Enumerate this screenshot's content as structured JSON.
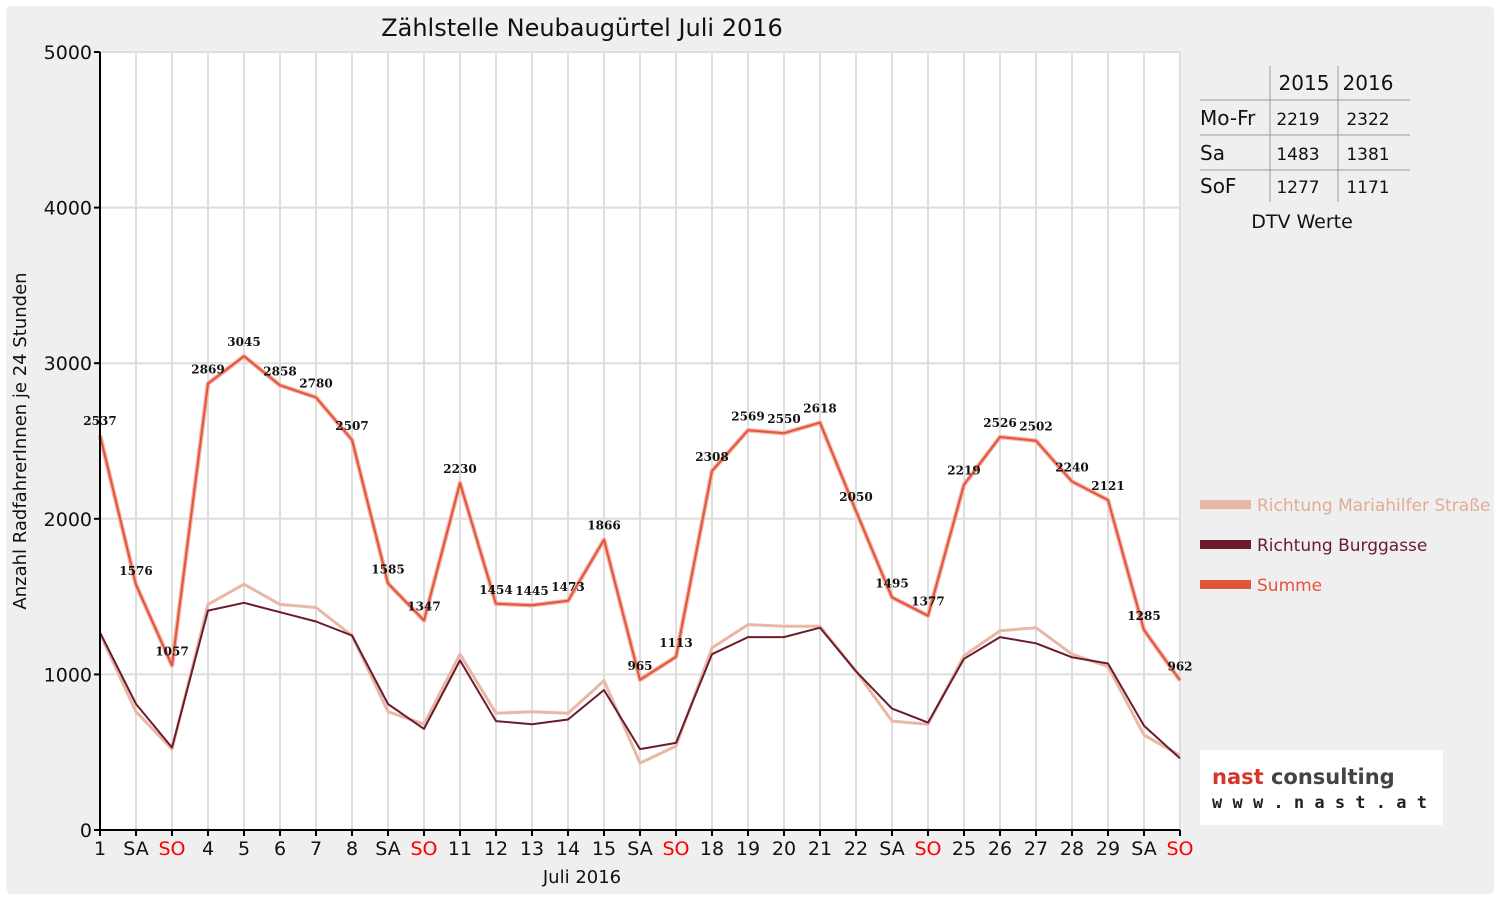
{
  "chart_data": {
    "type": "line",
    "title": "Zählstelle Neubaugürtel Juli 2016",
    "xlabel": "Juli 2016",
    "ylabel": "Anzahl RadfahrerInnen je 24 Stunden",
    "ylim": [
      0,
      5000
    ],
    "yticks": [
      0,
      1000,
      2000,
      3000,
      4000,
      5000
    ],
    "grid": true,
    "legend_position": "right",
    "categories": [
      "1",
      "SA",
      "SO",
      "4",
      "5",
      "6",
      "7",
      "8",
      "SA",
      "SO",
      "11",
      "12",
      "13",
      "14",
      "15",
      "SA",
      "SO",
      "18",
      "19",
      "20",
      "21",
      "22",
      "SA",
      "SO",
      "25",
      "26",
      "27",
      "28",
      "29",
      "SA",
      "SO"
    ],
    "weekend_color": "#ff0000",
    "series": [
      {
        "name": "Richtung Mariahilfer Straße",
        "color": "#e8b7a5",
        "values": [
          1260,
          760,
          520,
          1450,
          1580,
          1450,
          1430,
          1250,
          760,
          680,
          1130,
          750,
          760,
          750,
          960,
          430,
          540,
          1170,
          1320,
          1310,
          1310,
          1020,
          700,
          680,
          1120,
          1280,
          1300,
          1130,
          1050,
          610,
          480
        ]
      },
      {
        "name": "Richtung Burggasse",
        "color": "#6b1b2e",
        "values": [
          1270,
          810,
          530,
          1410,
          1460,
          1400,
          1340,
          1250,
          810,
          650,
          1090,
          700,
          680,
          710,
          900,
          520,
          560,
          1130,
          1240,
          1240,
          1300,
          1020,
          780,
          690,
          1100,
          1240,
          1200,
          1110,
          1070,
          670,
          460
        ]
      },
      {
        "name": "Summe",
        "color": "#e2543c",
        "values": [
          2537,
          1576,
          1057,
          2869,
          3045,
          2858,
          2780,
          2507,
          1585,
          1347,
          2230,
          1454,
          1445,
          1473,
          1866,
          965,
          1113,
          2308,
          2569,
          2550,
          2618,
          2050,
          1495,
          1377,
          2219,
          2526,
          2502,
          2240,
          2121,
          1285,
          962
        ],
        "labels": [
          "2537",
          "1576",
          "1057",
          "2869",
          "3045",
          "2858",
          "2780",
          "2507",
          "1585",
          "1347",
          "2230",
          "1454",
          "1445",
          "1473",
          "1866",
          "965",
          "1113",
          "2308",
          "2569",
          "2550",
          "2618",
          "2050",
          "1495",
          "1377",
          "2219",
          "2526",
          "2502",
          "2240",
          "2121",
          "1285",
          "962"
        ]
      }
    ]
  },
  "dtv_table": {
    "headers": [
      "",
      "2015",
      "2016"
    ],
    "rows": [
      {
        "label": "Mo-Fr",
        "v2015": "2219",
        "v2016": "2322"
      },
      {
        "label": "Sa",
        "v2015": "1483",
        "v2016": "1381"
      },
      {
        "label": "SoF",
        "v2015": "1277",
        "v2016": "1171"
      }
    ],
    "caption": "DTV Werte"
  },
  "logo": {
    "main": "nast consulting",
    "url": "w w w . n a s t . a t",
    "colors": {
      "nast": "#d6352a",
      "consulting": "#444444"
    }
  }
}
